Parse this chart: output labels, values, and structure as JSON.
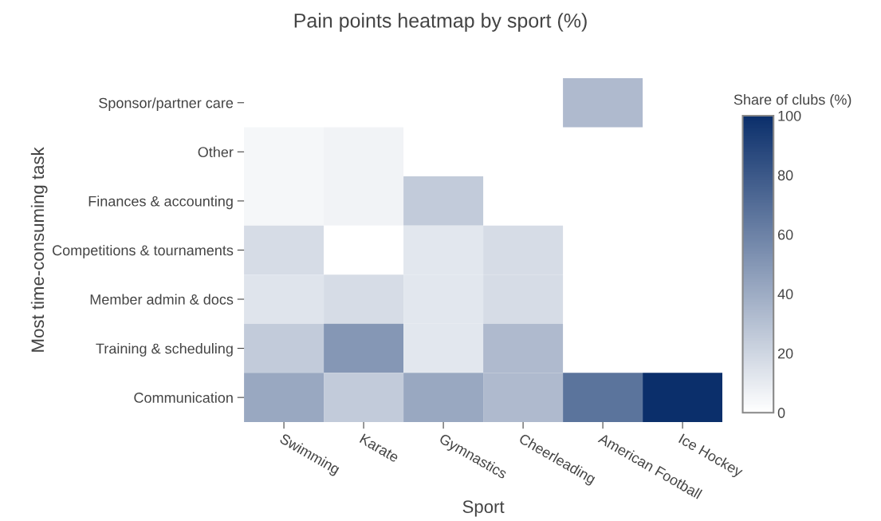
{
  "chart_data": {
    "type": "heatmap",
    "title": "Pain points heatmap by sport (%)",
    "xlabel": "Sport",
    "ylabel": "Most time-consuming task",
    "clabel": "Share of clubs (%)",
    "categories": [
      "Swimming",
      "Karate",
      "Gymnastics",
      "Cheerleading",
      "American Football",
      "Ice Hockey"
    ],
    "y_categories": [
      "Sponsor/partner care",
      "Other",
      "Finances & accounting",
      "Competitions & tournaments",
      "Member admin & docs",
      "Training & scheduling",
      "Communication"
    ],
    "cells": [
      [
        null,
        null,
        null,
        null,
        33,
        null
      ],
      [
        4,
        6,
        null,
        null,
        null,
        null
      ],
      [
        4,
        6,
        25,
        null,
        null,
        null
      ],
      [
        17,
        0,
        12,
        17,
        null,
        null
      ],
      [
        13,
        17,
        12,
        17,
        null,
        null
      ],
      [
        25,
        50,
        12,
        33,
        null,
        null
      ],
      [
        42,
        25,
        42,
        33,
        67,
        100
      ]
    ],
    "colors": [
      "#ffffff",
      "#0b2f6b"
    ],
    "clim": [
      0,
      100
    ],
    "cticks": [
      0,
      20,
      40,
      60,
      80,
      100
    ]
  }
}
